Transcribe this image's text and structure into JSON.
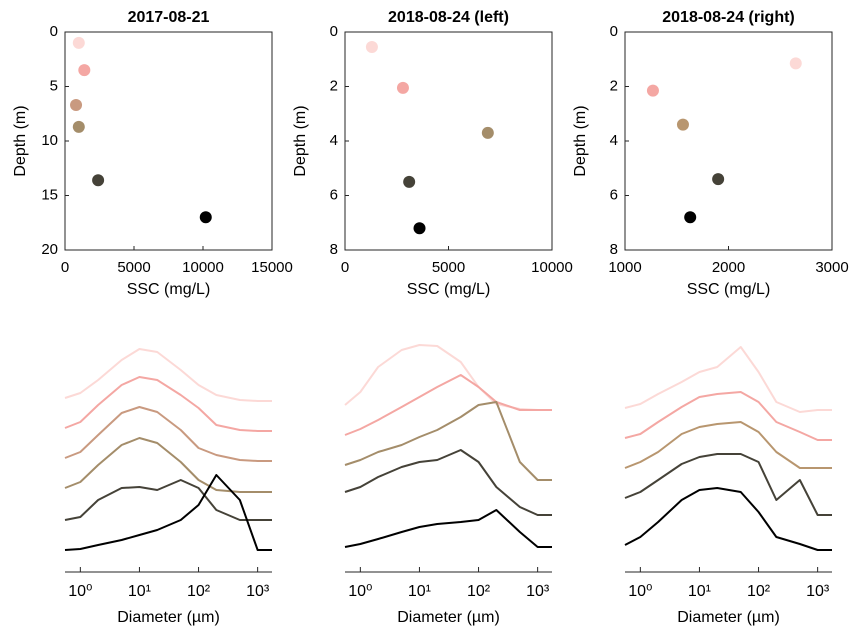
{
  "chart_data": [
    {
      "type": "scatter",
      "title": "2017-08-21",
      "x_label": "SSC (mg/L)",
      "y_label": "Depth (m)",
      "x": [
        1000,
        1400,
        800,
        1000,
        2400,
        10200
      ],
      "y": [
        1.0,
        3.5,
        6.7,
        8.7,
        13.6,
        17.0
      ],
      "colors": [
        "#fcd9d6",
        "#f4a7a3",
        "#c99a80",
        "#a48d6a",
        "#454238",
        "#000000"
      ],
      "xlim": [
        0,
        15000
      ],
      "xticks": [
        0,
        5000,
        10000,
        15000
      ],
      "ylim": [
        0,
        20
      ],
      "yticks": [
        0,
        5,
        10,
        15,
        20
      ],
      "y_reversed": true
    },
    {
      "type": "scatter",
      "title": "2018-08-24 (left)",
      "x_label": "SSC (mg/L)",
      "y_label": "Depth (m)",
      "x": [
        1300,
        2800,
        6900,
        3100,
        3600
      ],
      "y": [
        0.55,
        2.05,
        3.7,
        5.5,
        7.2
      ],
      "colors": [
        "#fcd9d6",
        "#f4a7a3",
        "#a48d6a",
        "#454238",
        "#000000"
      ],
      "xlim": [
        0,
        10000
      ],
      "xticks": [
        0,
        5000,
        10000
      ],
      "ylim": [
        0,
        8
      ],
      "yticks": [
        0,
        2,
        4,
        6,
        8
      ],
      "y_reversed": true
    },
    {
      "type": "scatter",
      "title": "2018-08-24 (right)",
      "x_label": "SSC (mg/L)",
      "y_label": "Depth (m)",
      "x": [
        2650,
        1270,
        1560,
        1900,
        1630
      ],
      "y": [
        1.15,
        2.15,
        3.4,
        5.4,
        6.8
      ],
      "colors": [
        "#fcd9d6",
        "#f4a7a3",
        "#b8966f",
        "#454238",
        "#000000"
      ],
      "xlim": [
        1000,
        3000
      ],
      "xticks": [
        1000,
        2000,
        3000
      ],
      "ylim": [
        0,
        8
      ],
      "yticks": [
        0,
        2,
        4,
        6,
        8
      ],
      "y_reversed": true
    },
    {
      "type": "line",
      "x_label": "Diameter (µm)",
      "x_log": true,
      "x": [
        0.55,
        1,
        2,
        5,
        10,
        20,
        50,
        100,
        200,
        500,
        1000,
        1750
      ],
      "series": [
        {
          "color": "#fcd9d6",
          "values": [
            174,
            179,
            192,
            212,
            223,
            220,
            202,
            187,
            177,
            172,
            171,
            171
          ]
        },
        {
          "color": "#f4a7a3",
          "values": [
            144,
            150,
            167,
            187,
            195,
            192,
            177,
            164,
            147,
            142,
            141,
            141
          ]
        },
        {
          "color": "#c99a80",
          "values": [
            114,
            120,
            137,
            159,
            165,
            160,
            142,
            124,
            117,
            112,
            111,
            111
          ]
        },
        {
          "color": "#a48d6a",
          "values": [
            84,
            90,
            107,
            127,
            134,
            129,
            110,
            92,
            82,
            80,
            80,
            80
          ]
        },
        {
          "color": "#454238",
          "values": [
            52,
            55,
            72,
            84,
            85,
            82,
            92,
            84,
            62,
            52,
            52,
            52
          ]
        },
        {
          "color": "#000000",
          "values": [
            22,
            23,
            27,
            32,
            37,
            42,
            52,
            67,
            97,
            72,
            22,
            22
          ]
        }
      ],
      "xlim": [
        0.55,
        1750
      ],
      "ylim": [
        0,
        250
      ],
      "xticks": [
        {
          "value": 1,
          "label": "10⁰"
        },
        {
          "value": 10,
          "label": "10¹"
        },
        {
          "value": 100,
          "label": "10²"
        },
        {
          "value": 1000,
          "label": "10³"
        }
      ]
    },
    {
      "type": "line",
      "x_label": "Diameter (µm)",
      "x_log": true,
      "x": [
        0.55,
        1,
        2,
        5,
        10,
        20,
        50,
        100,
        200,
        500,
        1000,
        1750
      ],
      "series": [
        {
          "color": "#fcd9d6",
          "values": [
            167,
            180,
            205,
            222,
            227,
            226,
            210,
            185,
            168,
            163,
            162,
            162
          ]
        },
        {
          "color": "#f4a7a3",
          "values": [
            137,
            143,
            152,
            165,
            175,
            185,
            197,
            185,
            170,
            162,
            162,
            162
          ]
        },
        {
          "color": "#a48d6a",
          "values": [
            107,
            112,
            120,
            127,
            135,
            142,
            155,
            167,
            170,
            110,
            92,
            92
          ]
        },
        {
          "color": "#454238",
          "values": [
            80,
            85,
            95,
            105,
            110,
            112,
            122,
            110,
            85,
            65,
            57,
            57
          ]
        },
        {
          "color": "#000000",
          "values": [
            25,
            28,
            33,
            40,
            45,
            48,
            50,
            52,
            62,
            40,
            25,
            25
          ]
        }
      ],
      "xlim": [
        0.55,
        1750
      ],
      "ylim": [
        0,
        250
      ],
      "xticks": [
        {
          "value": 1,
          "label": "10⁰"
        },
        {
          "value": 10,
          "label": "10¹"
        },
        {
          "value": 100,
          "label": "10²"
        },
        {
          "value": 1000,
          "label": "10³"
        }
      ]
    },
    {
      "type": "line",
      "x_label": "Diameter (µm)",
      "x_log": true,
      "x": [
        0.55,
        1,
        2,
        5,
        10,
        20,
        50,
        100,
        200,
        500,
        1000,
        1750
      ],
      "series": [
        {
          "color": "#fcd9d6",
          "values": [
            164,
            168,
            178,
            190,
            200,
            205,
            225,
            200,
            170,
            160,
            162,
            162
          ]
        },
        {
          "color": "#f4a7a3",
          "values": [
            134,
            138,
            150,
            165,
            175,
            178,
            180,
            170,
            150,
            140,
            132,
            132
          ]
        },
        {
          "color": "#b8966f",
          "values": [
            104,
            110,
            120,
            138,
            145,
            148,
            150,
            140,
            120,
            104,
            104,
            104
          ]
        },
        {
          "color": "#454238",
          "values": [
            74,
            80,
            92,
            108,
            115,
            118,
            118,
            110,
            72,
            92,
            57,
            57
          ]
        },
        {
          "color": "#000000",
          "values": [
            27,
            35,
            50,
            72,
            82,
            84,
            80,
            60,
            35,
            28,
            22,
            22
          ]
        }
      ],
      "xlim": [
        0.55,
        1750
      ],
      "ylim": [
        0,
        250
      ],
      "xticks": [
        {
          "value": 1,
          "label": "10⁰"
        },
        {
          "value": 10,
          "label": "10¹"
        },
        {
          "value": 100,
          "label": "10²"
        },
        {
          "value": 1000,
          "label": "10³"
        }
      ]
    }
  ]
}
